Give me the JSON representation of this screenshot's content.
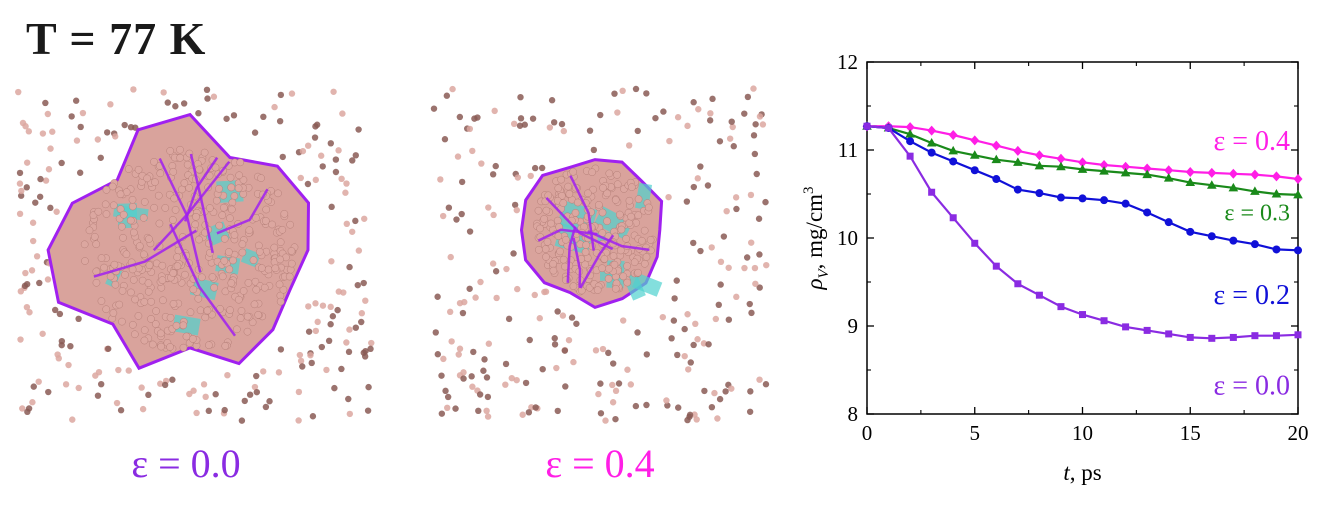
{
  "header": {
    "title": "T = 77 K"
  },
  "snapshots": [
    {
      "caption": "ε = 0.0",
      "color": "#8a2be2"
    },
    {
      "caption": "ε = 0.4",
      "color": "#ff1ee6"
    }
  ],
  "colors": {
    "atom": "#dca7a0",
    "atom_dark": "#8a5a55",
    "cluster_face": "#d9a39c",
    "cluster_edge": "#a020f0",
    "cluster_inner": "#4fd1cf"
  },
  "chart_data": {
    "type": "line",
    "xlabel_italic": "t",
    "xlabel_rest": ", ps",
    "ylabel_symbol": "ρ",
    "ylabel_sub": "V",
    "ylabel_rest": ", mg/cm",
    "ylabel_sup": "3",
    "xlim": [
      0,
      20
    ],
    "ylim": [
      8,
      12
    ],
    "xticks": [
      0,
      5,
      10,
      15,
      20
    ],
    "yticks": [
      8,
      9,
      10,
      11,
      12
    ],
    "series": [
      {
        "name": "ε = 0.4",
        "color": "#ff1ee6",
        "marker": "diamond",
        "x": [
          0,
          1,
          2,
          3,
          4,
          5,
          6,
          7,
          8,
          9,
          10,
          11,
          12,
          13,
          14,
          15,
          16,
          17,
          18,
          19,
          20
        ],
        "y": [
          11.27,
          11.27,
          11.26,
          11.22,
          11.17,
          11.11,
          11.05,
          10.99,
          10.94,
          10.9,
          10.86,
          10.83,
          10.81,
          10.79,
          10.77,
          10.75,
          10.74,
          10.73,
          10.72,
          10.7,
          10.67
        ]
      },
      {
        "name": "ε = 0.3",
        "color": "#1a8a1a",
        "marker": "triangle",
        "x": [
          0,
          1,
          2,
          3,
          4,
          5,
          6,
          7,
          8,
          9,
          10,
          11,
          12,
          13,
          14,
          15,
          16,
          17,
          18,
          19,
          20
        ],
        "y": [
          11.27,
          11.25,
          11.18,
          11.08,
          10.99,
          10.94,
          10.89,
          10.86,
          10.82,
          10.81,
          10.78,
          10.76,
          10.74,
          10.72,
          10.68,
          10.63,
          10.6,
          10.57,
          10.53,
          10.5,
          10.49
        ]
      },
      {
        "name": "ε = 0.2",
        "color": "#1010d8",
        "marker": "circle",
        "x": [
          0,
          1,
          2,
          3,
          4,
          5,
          6,
          7,
          8,
          9,
          10,
          11,
          12,
          13,
          14,
          15,
          16,
          17,
          18,
          19,
          20
        ],
        "y": [
          11.27,
          11.25,
          11.1,
          10.97,
          10.87,
          10.77,
          10.67,
          10.55,
          10.51,
          10.46,
          10.45,
          10.43,
          10.39,
          10.29,
          10.18,
          10.07,
          10.02,
          9.97,
          9.93,
          9.87,
          9.86
        ]
      },
      {
        "name": "ε = 0.0",
        "color": "#8a2be2",
        "marker": "square",
        "x": [
          0,
          1,
          2,
          3,
          4,
          5,
          6,
          7,
          8,
          9,
          10,
          11,
          12,
          13,
          14,
          15,
          16,
          17,
          18,
          19,
          20
        ],
        "y": [
          11.27,
          11.25,
          10.93,
          10.52,
          10.23,
          9.94,
          9.68,
          9.48,
          9.35,
          9.22,
          9.13,
          9.06,
          8.99,
          8.95,
          8.91,
          8.87,
          8.86,
          8.87,
          8.89,
          8.89,
          8.9
        ]
      }
    ]
  }
}
